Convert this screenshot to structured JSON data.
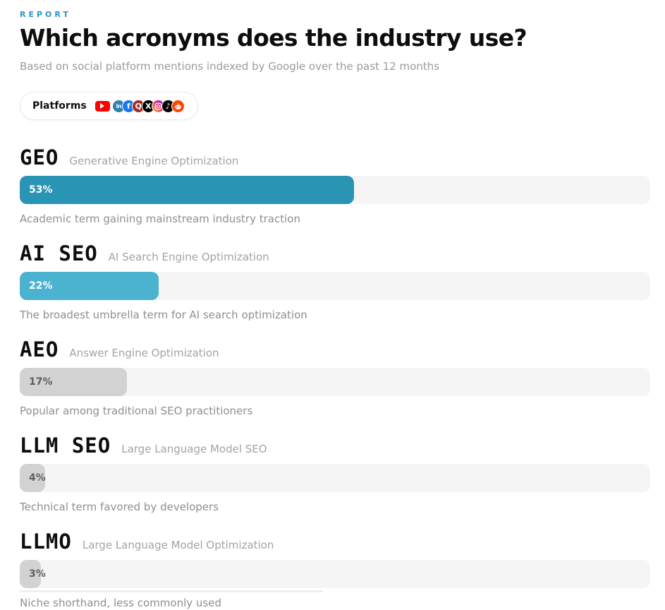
{
  "report": {
    "eyebrow": "REPORT",
    "title": "Which acronyms does the industry use?",
    "subtitle": "Based on social platform mentions indexed by Google over the past 12 months"
  },
  "platforms": {
    "label": "Platforms",
    "icons": [
      {
        "name": "youtube",
        "color": "#FF0000"
      },
      {
        "name": "linkedin",
        "color": "#2e80ae",
        "glyph": "in"
      },
      {
        "name": "facebook",
        "color": "#1877F2",
        "glyph": "f"
      },
      {
        "name": "quora",
        "color": "#a22b25",
        "glyph": "Q"
      },
      {
        "name": "x",
        "color": "#000000",
        "glyph": "X"
      },
      {
        "name": "instagram",
        "color": "gradient"
      },
      {
        "name": "tiktok",
        "color": "#010101",
        "glyph": "♪"
      },
      {
        "name": "reddit",
        "color": "#FF4500",
        "glyph": "ʘ‿ʘ"
      }
    ]
  },
  "chart_data": {
    "type": "bar",
    "orientation": "horizontal",
    "unit": "%",
    "xlim": [
      0,
      100
    ],
    "track_color": "#f5f5f6",
    "items": [
      {
        "acronym": "GEO",
        "full_name": "Generative Engine Optimization",
        "value": 53,
        "label": "53%",
        "note": "Academic term gaining mainstream industry traction",
        "bar_color": "#2a94b5",
        "label_color": "#ffffff"
      },
      {
        "acronym": "AI SEO",
        "full_name": "AI Search Engine Optimization",
        "value": 22,
        "label": "22%",
        "note": "The broadest umbrella term for AI search optimization",
        "bar_color": "#4bb2d0",
        "label_color": "#ffffff"
      },
      {
        "acronym": "AEO",
        "full_name": "Answer Engine Optimization",
        "value": 17,
        "label": "17%",
        "note": "Popular among traditional SEO practitioners",
        "bar_color": "#d2d2d2",
        "label_color": "#5f5f5f"
      },
      {
        "acronym": "LLM SEO",
        "full_name": "Large Language Model SEO",
        "value": 4,
        "label": "4%",
        "note": "Technical term favored by developers",
        "bar_color": "#d2d2d2",
        "label_color": "#5f5f5f"
      },
      {
        "acronym": "LLMO",
        "full_name": "Large Language Model Optimization",
        "value": 3,
        "label": "3%",
        "note": "Niche shorthand, less commonly used",
        "bar_color": "#d2d2d2",
        "label_color": "#5f5f5f"
      }
    ],
    "colors": {
      "accent": "#2b96c2",
      "track": "#f5f5f6",
      "title": "#0d0d0d",
      "muted_text": "#9b9b9b"
    }
  }
}
